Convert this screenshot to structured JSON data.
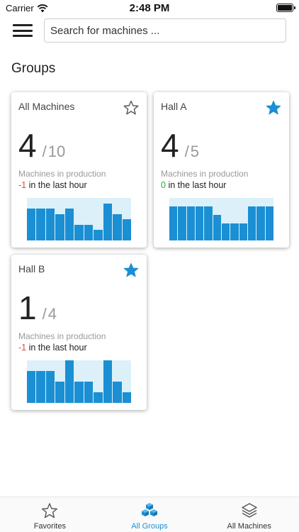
{
  "status_bar": {
    "carrier": "Carrier",
    "time": "2:48 PM"
  },
  "search": {
    "placeholder": "Search for machines ..."
  },
  "section_title": "Groups",
  "colors": {
    "accent": "#1b8fd3",
    "chart_bg": "#dcf0fa",
    "negative": "#e0483e",
    "neutral_delta": "#2eaa3a"
  },
  "groups": [
    {
      "title": "All Machines",
      "favorite": false,
      "in_production": "4",
      "separator": "/",
      "total": "10",
      "subtitle": "Machines in production",
      "delta": "-1",
      "delta_suffix": "in the last hour",
      "history": [
        0.75,
        0.75,
        0.75,
        0.62,
        0.75,
        0.37,
        0.37,
        0.25,
        0.87,
        0.62,
        0.5
      ]
    },
    {
      "title": "Hall A",
      "favorite": true,
      "in_production": "4",
      "separator": "/",
      "total": "5",
      "subtitle": "Machines in production",
      "delta": "0",
      "delta_suffix": "in the last hour",
      "history": [
        0.8,
        0.8,
        0.8,
        0.8,
        0.8,
        0.6,
        0.4,
        0.4,
        0.4,
        0.8,
        0.8,
        0.8
      ]
    },
    {
      "title": "Hall B",
      "favorite": true,
      "in_production": "1",
      "separator": "/",
      "total": "4",
      "subtitle": "Machines in production",
      "delta": "-1",
      "delta_suffix": "in the last hour",
      "history": [
        0.75,
        0.75,
        0.75,
        0.5,
        1.0,
        0.5,
        0.5,
        0.25,
        1.0,
        0.5,
        0.25
      ]
    }
  ],
  "tabs": [
    {
      "label": "Favorites",
      "icon": "star-outline-icon",
      "active": false
    },
    {
      "label": "All Groups",
      "icon": "cubes-icon",
      "active": true
    },
    {
      "label": "All Machines",
      "icon": "layers-icon",
      "active": false
    }
  ]
}
